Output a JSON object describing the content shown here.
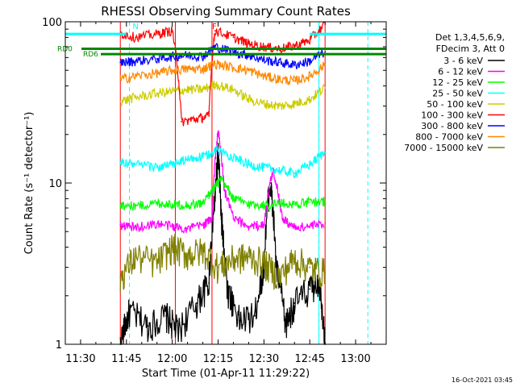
{
  "chart_data": {
    "type": "line",
    "title": "RHESSI Observing Summary Count Rates",
    "xlabel": "Start Time (01-Apr-11 11:29:22)",
    "ylabel": "Count Rate (s⁻¹ detector⁻¹)",
    "y_scale": "log",
    "ylim": [
      1,
      100
    ],
    "xlim": [
      "11:25",
      "13:10"
    ],
    "x_ticks": [
      "11:30",
      "11:45",
      "12:00",
      "12:15",
      "12:30",
      "12:45",
      "13:00"
    ],
    "y_ticks": [
      "1",
      "10",
      "100"
    ],
    "legend_header": [
      "Det 1,3,4,5,6,9,",
      "FDecim 3, Att 0"
    ],
    "legend_position": "right",
    "series": [
      {
        "name": "3 - 6 keV",
        "color": "#000000",
        "x": [
          "11:43",
          "11:46",
          "11:52",
          "11:58",
          "12:02",
          "12:08",
          "12:12",
          "12:14",
          "12:15",
          "12:16",
          "12:18",
          "12:22",
          "12:27",
          "12:30",
          "12:32",
          "12:34",
          "12:37",
          "12:40",
          "12:45",
          "12:48",
          "12:50"
        ],
        "y": [
          1.0,
          1.6,
          1.3,
          1.5,
          1.2,
          1.8,
          2.4,
          8.0,
          15.0,
          6.0,
          2.2,
          1.4,
          1.5,
          3.0,
          10.0,
          3.0,
          1.3,
          1.8,
          2.2,
          2.5,
          1.0
        ]
      },
      {
        "name": "6 - 12 keV",
        "color": "#ff00ff",
        "x": [
          "11:43",
          "11:48",
          "11:55",
          "12:00",
          "12:05",
          "12:10",
          "12:13",
          "12:15",
          "12:17",
          "12:20",
          "12:25",
          "12:30",
          "12:33",
          "12:36",
          "12:40",
          "12:45",
          "12:50"
        ],
        "y": [
          5.5,
          5.3,
          5.6,
          5.4,
          5.2,
          5.5,
          6.0,
          21.0,
          9.0,
          6.0,
          5.4,
          5.5,
          12.0,
          6.0,
          5.3,
          5.4,
          5.6
        ]
      },
      {
        "name": "12 - 25 keV",
        "color": "#00ff00",
        "x": [
          "11:43",
          "11:48",
          "11:55",
          "12:00",
          "12:05",
          "12:10",
          "12:14",
          "12:16",
          "12:20",
          "12:25",
          "12:30",
          "12:35",
          "12:40",
          "12:45",
          "12:50"
        ],
        "y": [
          7.3,
          7.2,
          7.5,
          7.4,
          7.3,
          7.5,
          9.5,
          10.5,
          8.0,
          7.4,
          7.3,
          7.5,
          7.4,
          7.6,
          7.7
        ]
      },
      {
        "name": "25 - 50 keV",
        "color": "#00ffff",
        "x": [
          "11:43",
          "11:48",
          "11:55",
          "12:00",
          "12:05",
          "12:10",
          "12:15",
          "12:20",
          "12:25",
          "12:30",
          "12:35",
          "12:40",
          "12:45",
          "12:50"
        ],
        "y": [
          13.5,
          13.0,
          12.5,
          13.0,
          14.0,
          14.5,
          16.0,
          14.5,
          13.0,
          12.5,
          12.0,
          11.5,
          13.0,
          15.5
        ]
      },
      {
        "name": "50 - 100 keV",
        "color": "#cccc00",
        "x": [
          "11:43",
          "11:48",
          "11:55",
          "12:00",
          "12:05",
          "12:10",
          "12:14",
          "12:20",
          "12:25",
          "12:30",
          "12:35",
          "12:40",
          "12:45",
          "12:50"
        ],
        "y": [
          32,
          34,
          36,
          37,
          38,
          38,
          41,
          38,
          33,
          31,
          30,
          31,
          33,
          39
        ]
      },
      {
        "name": "100 - 300 keV",
        "color": "#ff0000",
        "x": [
          "11:43",
          "11:48",
          "11:55",
          "12:00",
          "12:03",
          "12:08",
          "12:12",
          "12:14",
          "12:20",
          "12:25",
          "12:30",
          "12:35",
          "12:40",
          "12:45",
          "12:50"
        ],
        "y": [
          85,
          80,
          84,
          88,
          24,
          25,
          26,
          88,
          80,
          73,
          70,
          68,
          71,
          77,
          96
        ]
      },
      {
        "name": "300 - 800 keV",
        "color": "#0000ff",
        "x": [
          "11:43",
          "11:48",
          "11:55",
          "12:00",
          "12:05",
          "12:10",
          "12:14",
          "12:20",
          "12:25",
          "12:30",
          "12:35",
          "12:40",
          "12:45",
          "12:50"
        ],
        "y": [
          56,
          57,
          59,
          61,
          62,
          61,
          70,
          65,
          62,
          58,
          56,
          54,
          57,
          65
        ]
      },
      {
        "name": "800 - 7000 keV",
        "color": "#ff8800",
        "x": [
          "11:43",
          "11:48",
          "11:55",
          "12:00",
          "12:05",
          "12:10",
          "12:14",
          "12:20",
          "12:25",
          "12:30",
          "12:35",
          "12:40",
          "12:45",
          "12:50"
        ],
        "y": [
          44,
          46,
          48,
          50,
          51,
          51,
          55,
          52,
          50,
          46,
          44,
          43,
          46,
          54
        ]
      },
      {
        "name": "7000 - 15000 keV",
        "color": "#808000",
        "x": [
          "11:43",
          "11:48",
          "11:55",
          "12:00",
          "12:05",
          "12:10",
          "12:15",
          "12:20",
          "12:25",
          "12:30",
          "12:35",
          "12:40",
          "12:45",
          "12:50"
        ],
        "y": [
          2.6,
          3.5,
          3.2,
          4.0,
          3.6,
          3.8,
          3.0,
          3.4,
          3.5,
          3.2,
          2.6,
          3.4,
          3.0,
          2.8
        ]
      }
    ],
    "annotations": {
      "rd_bars": [
        {
          "label": "RD0",
          "color": "#008800",
          "y": 68
        },
        {
          "label": "RD6",
          "color": "#008800",
          "y": 63
        }
      ],
      "cyan_bars": [
        {
          "x_start": "11:25",
          "x_end": "11:45",
          "y": 84
        },
        {
          "x_start": "12:45",
          "x_end": "13:10",
          "y": 84
        }
      ],
      "flag_labels": [
        {
          "label": "N",
          "x": "11:47",
          "color": "#00ffff"
        },
        {
          "label": "F",
          "x": "12:13",
          "color": "#ff0000"
        }
      ],
      "vlines": [
        {
          "x": "11:43",
          "color": "#ff0000",
          "style": "solid"
        },
        {
          "x": "12:01",
          "color": "#ff0000",
          "style": "solid"
        },
        {
          "x": "12:13",
          "color": "#ff0000",
          "style": "solid"
        },
        {
          "x": "12:50",
          "color": "#ff0000",
          "style": "solid"
        },
        {
          "x": "11:25",
          "color": "#00ffff",
          "style": "solid"
        },
        {
          "x": "12:48",
          "color": "#00ffff",
          "style": "solid"
        },
        {
          "x": "11:46",
          "color": "#00ffff",
          "style": "dashed"
        },
        {
          "x": "12:48",
          "color": "#00ffff",
          "style": "dashed"
        },
        {
          "x": "13:04",
          "color": "#00ffff",
          "style": "dashed"
        }
      ]
    },
    "footer_date": "16-Oct-2021 03:45"
  }
}
